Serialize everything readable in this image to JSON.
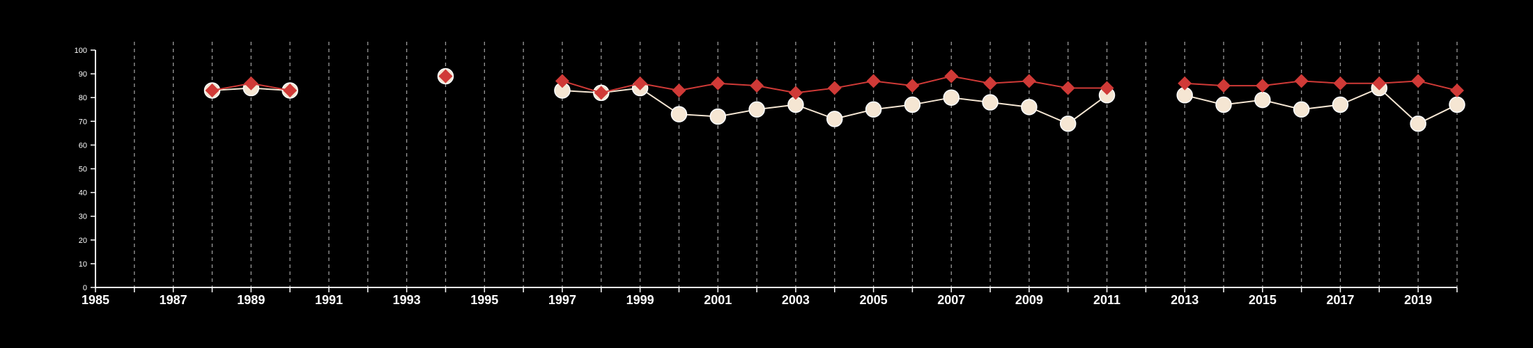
{
  "chart_data": {
    "type": "line",
    "title": "",
    "xlabel": "",
    "ylabel": "",
    "xlim": [
      1985,
      2020
    ],
    "ylim": [
      0,
      100
    ],
    "x_tick_labels": [
      "1985",
      "1987",
      "1989",
      "1991",
      "1993",
      "1995",
      "1997",
      "1999",
      "2001",
      "2003",
      "2005",
      "2007",
      "2009",
      "2011",
      "2013",
      "2015",
      "2017",
      "2019"
    ],
    "y_tick_labels": [
      "0",
      "10",
      "20",
      "30",
      "40",
      "50",
      "60",
      "70",
      "80",
      "90",
      "100"
    ],
    "grid": "vertical dashed lines at each year",
    "legend": "none",
    "series": [
      {
        "color": "#f5e6d3",
        "marker": "circle",
        "points": [
          [
            1988,
            83
          ],
          [
            1989,
            84
          ],
          [
            1990,
            83
          ],
          [
            1994,
            89
          ],
          [
            1997,
            83
          ],
          [
            1998,
            82
          ],
          [
            1999,
            84
          ],
          [
            2000,
            73
          ],
          [
            2001,
            72
          ],
          [
            2002,
            75
          ],
          [
            2003,
            77
          ],
          [
            2004,
            71
          ],
          [
            2005,
            75
          ],
          [
            2006,
            77
          ],
          [
            2007,
            80
          ],
          [
            2008,
            78
          ],
          [
            2009,
            76
          ],
          [
            2010,
            69
          ],
          [
            2011,
            81
          ],
          [
            2013,
            81
          ],
          [
            2014,
            77
          ],
          [
            2015,
            79
          ],
          [
            2016,
            75
          ],
          [
            2017,
            77
          ],
          [
            2018,
            84
          ],
          [
            2019,
            69
          ],
          [
            2020,
            77
          ]
        ]
      },
      {
        "color": "#d03a37",
        "marker": "diamond",
        "points": [
          [
            1988,
            83
          ],
          [
            1989,
            86
          ],
          [
            1990,
            83
          ],
          [
            1994,
            89
          ],
          [
            1997,
            87
          ],
          [
            1998,
            82
          ],
          [
            1999,
            86
          ],
          [
            2000,
            83
          ],
          [
            2001,
            86
          ],
          [
            2002,
            85
          ],
          [
            2003,
            82
          ],
          [
            2004,
            84
          ],
          [
            2005,
            87
          ],
          [
            2006,
            85
          ],
          [
            2007,
            89
          ],
          [
            2008,
            86
          ],
          [
            2009,
            87
          ],
          [
            2010,
            84
          ],
          [
            2011,
            84
          ],
          [
            2013,
            86
          ],
          [
            2014,
            85
          ],
          [
            2015,
            85
          ],
          [
            2016,
            87
          ],
          [
            2017,
            86
          ],
          [
            2018,
            86
          ],
          [
            2019,
            87
          ],
          [
            2020,
            83
          ]
        ]
      }
    ]
  }
}
